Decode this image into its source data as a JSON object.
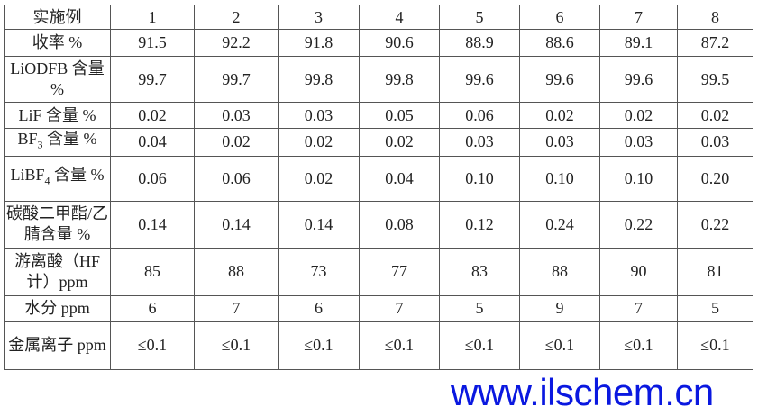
{
  "header": {
    "label": "实施例",
    "columns": [
      "1",
      "2",
      "3",
      "4",
      "5",
      "6",
      "7",
      "8"
    ]
  },
  "rows": [
    {
      "label": "收率 %",
      "values": [
        "91.5",
        "92.2",
        "91.8",
        "90.6",
        "88.9",
        "88.6",
        "89.1",
        "87.2"
      ]
    },
    {
      "label": "LiODFB 含量 %",
      "values": [
        "99.7",
        "99.7",
        "99.8",
        "99.8",
        "99.6",
        "99.6",
        "99.6",
        "99.5"
      ]
    },
    {
      "label": "LiF 含量 %",
      "values": [
        "0.02",
        "0.03",
        "0.03",
        "0.05",
        "0.06",
        "0.02",
        "0.02",
        "0.02"
      ]
    },
    {
      "label_main": "BF",
      "label_sub": "3",
      "label_rest": " 含量 %",
      "values": [
        "0.04",
        "0.02",
        "0.02",
        "0.02",
        "0.03",
        "0.03",
        "0.03",
        "0.03"
      ]
    },
    {
      "label_main": "LiBF",
      "label_sub": "4",
      "label_rest": " 含量 %",
      "values": [
        "0.06",
        "0.06",
        "0.02",
        "0.04",
        "0.10",
        "0.10",
        "0.10",
        "0.20"
      ]
    },
    {
      "label": "碳酸二甲酯/乙腈含量 %",
      "values": [
        "0.14",
        "0.14",
        "0.14",
        "0.08",
        "0.12",
        "0.24",
        "0.22",
        "0.22"
      ]
    },
    {
      "label": "游离酸（HF计）ppm",
      "values": [
        "85",
        "88",
        "73",
        "77",
        "83",
        "88",
        "90",
        "81"
      ]
    },
    {
      "label": "水分 ppm",
      "values": [
        "6",
        "7",
        "6",
        "7",
        "5",
        "9",
        "7",
        "5"
      ]
    },
    {
      "label": "金属离子 ppm",
      "values": [
        "≤0.1",
        "≤0.1",
        "≤0.1",
        "≤0.1",
        "≤0.1",
        "≤0.1",
        "≤0.1",
        "≤0.1"
      ]
    }
  ],
  "watermark": "www.ilschem.cn"
}
